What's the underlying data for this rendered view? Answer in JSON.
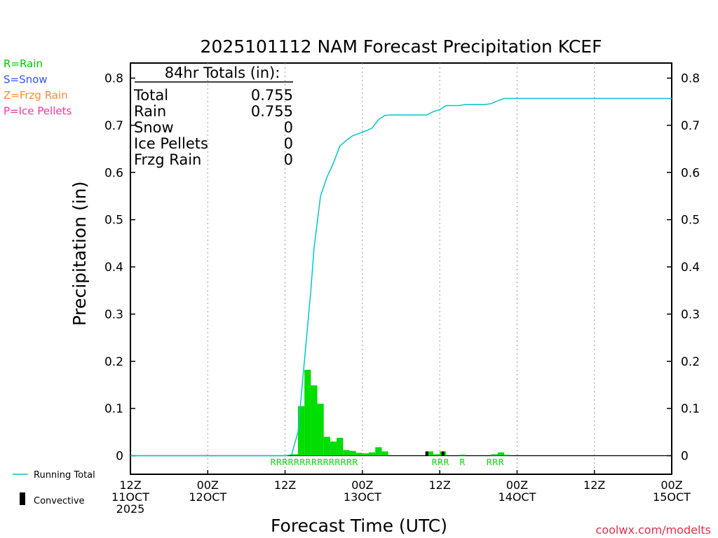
{
  "chart_data": {
    "type": "bar",
    "title": "2025101112 NAM Forecast Precipitation KCEF",
    "xlabel": "Forecast Time (UTC)",
    "ylabel": "Precipitation (in)",
    "ylim": [
      0,
      0.83
    ],
    "y_ticks": [
      0,
      0.1,
      0.2,
      0.3,
      0.4,
      0.5,
      0.6,
      0.7,
      0.8
    ],
    "y_tick_labels": [
      "0",
      "0.1",
      "0.2",
      "0.3",
      "0.4",
      "0.5",
      "0.6",
      "0.7",
      "0.8"
    ],
    "xlim_hours": [
      0,
      84
    ],
    "x_ticks": [
      {
        "hour": 0,
        "line1": "12Z",
        "line2": "11OCT",
        "line3": "2025"
      },
      {
        "hour": 12,
        "line1": "00Z",
        "line2": "12OCT",
        "line3": ""
      },
      {
        "hour": 24,
        "line1": "12Z",
        "line2": "",
        "line3": ""
      },
      {
        "hour": 36,
        "line1": "00Z",
        "line2": "13OCT",
        "line3": ""
      },
      {
        "hour": 48,
        "line1": "12Z",
        "line2": "",
        "line3": ""
      },
      {
        "hour": 60,
        "line1": "00Z",
        "line2": "14OCT",
        "line3": ""
      },
      {
        "hour": 72,
        "line1": "12Z",
        "line2": "",
        "line3": ""
      },
      {
        "hour": 84,
        "line1": "00Z",
        "line2": "15OCT",
        "line3": ""
      }
    ],
    "series": [
      {
        "name": "Rain",
        "color": "#00dd00",
        "bar_width_hours": 1,
        "bars": [
          {
            "hour": 25.5,
            "value": 0.003
          },
          {
            "hour": 26.5,
            "value": 0.105
          },
          {
            "hour": 27.5,
            "value": 0.182
          },
          {
            "hour": 28.5,
            "value": 0.149
          },
          {
            "hour": 29.5,
            "value": 0.11
          },
          {
            "hour": 30.5,
            "value": 0.04
          },
          {
            "hour": 31.5,
            "value": 0.03
          },
          {
            "hour": 32.5,
            "value": 0.038
          },
          {
            "hour": 33.5,
            "value": 0.012
          },
          {
            "hour": 34.5,
            "value": 0.01
          },
          {
            "hour": 35.5,
            "value": 0.006
          },
          {
            "hour": 36.5,
            "value": 0.005
          },
          {
            "hour": 37.5,
            "value": 0.007
          },
          {
            "hour": 38.5,
            "value": 0.018
          },
          {
            "hour": 39.5,
            "value": 0.009
          },
          {
            "hour": 46.5,
            "value": 0.009
          },
          {
            "hour": 47.5,
            "value": 0.003
          },
          {
            "hour": 48.5,
            "value": 0.009
          },
          {
            "hour": 51.5,
            "value": 0.002
          },
          {
            "hour": 56.5,
            "value": 0.003
          },
          {
            "hour": 57.5,
            "value": 0.007
          },
          {
            "hour": 58.5,
            "value": 0.002
          }
        ]
      },
      {
        "name": "Convective",
        "color": "#000000",
        "bar_width_hours": 0.45,
        "bars": [
          {
            "hour": 46.0,
            "value": 0.009
          },
          {
            "hour": 48.5,
            "value": 0.009
          }
        ]
      },
      {
        "name": "Running Total",
        "color": "#00c8c8",
        "type": "line",
        "points": [
          [
            0,
            0
          ],
          [
            24,
            0
          ],
          [
            25,
            0.002
          ],
          [
            26,
            0.05
          ],
          [
            27,
            0.2
          ],
          [
            28,
            0.35
          ],
          [
            28.5,
            0.44
          ],
          [
            29.5,
            0.55
          ],
          [
            30.5,
            0.59
          ],
          [
            31.5,
            0.62
          ],
          [
            32.5,
            0.656
          ],
          [
            33.5,
            0.668
          ],
          [
            34.5,
            0.678
          ],
          [
            35.5,
            0.683
          ],
          [
            36.5,
            0.688
          ],
          [
            37.5,
            0.694
          ],
          [
            38.5,
            0.712
          ],
          [
            39.5,
            0.721
          ],
          [
            40.5,
            0.722
          ],
          [
            46,
            0.722
          ],
          [
            47,
            0.729
          ],
          [
            48,
            0.733
          ],
          [
            49,
            0.742
          ],
          [
            51,
            0.742
          ],
          [
            52,
            0.744
          ],
          [
            55,
            0.744
          ],
          [
            56,
            0.746
          ],
          [
            57,
            0.752
          ],
          [
            58,
            0.757
          ],
          [
            84,
            0.757
          ]
        ]
      }
    ],
    "type_markers": [
      {
        "hour": 28.5,
        "label": "RRRRRRRRRRRRRRR"
      },
      {
        "hour": 48.1,
        "label": "RRR"
      },
      {
        "hour": 51.5,
        "label": "R"
      },
      {
        "hour": 56.6,
        "label": "RRR"
      }
    ]
  },
  "totals_box": {
    "heading": "84hr Totals (in):",
    "rows": [
      {
        "label": "Total",
        "value": "0.755"
      },
      {
        "label": "Rain",
        "value": "0.755"
      },
      {
        "label": "Snow",
        "value": "0"
      },
      {
        "label": "Ice Pellets",
        "value": "0"
      },
      {
        "label": "Frzg Rain",
        "value": "0"
      }
    ]
  },
  "type_legend": [
    {
      "text": "R=Rain",
      "color": "#00cc00"
    },
    {
      "text": "S=Snow",
      "color": "#3355ff"
    },
    {
      "text": "Z=Frzg Rain",
      "color": "#ff8833"
    },
    {
      "text": "P=Ice Pellets",
      "color": "#ff3399"
    }
  ],
  "series_legend": [
    {
      "text": "Running Total",
      "color": "#00c8c8"
    },
    {
      "text": "Convective",
      "color": "#000000"
    }
  ],
  "credit": {
    "text": "coolwx.com/modelts",
    "color": "#e0304a"
  }
}
